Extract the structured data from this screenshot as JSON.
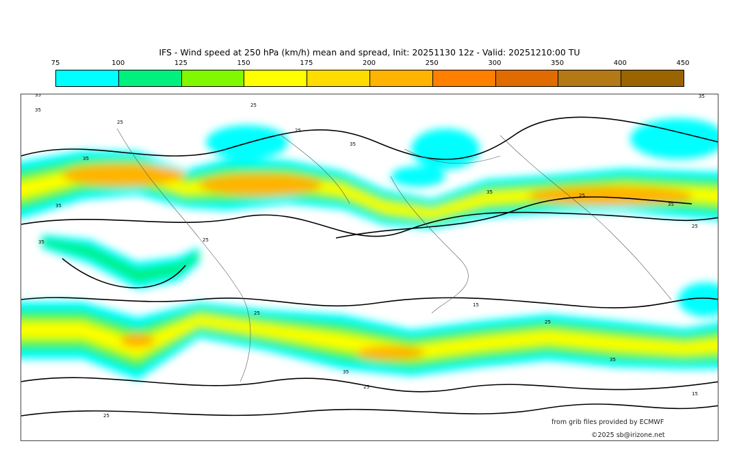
{
  "title": "IFS - Wind speed at 250 hPa (km/h) mean and spread, Init: 20251130 12z - Valid: 20251210:00 TU",
  "colorbar": {
    "ticks": [
      "75",
      "100",
      "125",
      "150",
      "175",
      "200",
      "250",
      "300",
      "350",
      "400",
      "450"
    ],
    "colors": [
      "#00ffff",
      "#00f080",
      "#80f800",
      "#ffff00",
      "#ffdc00",
      "#ffb400",
      "#ff8000",
      "#e06c00",
      "#b47814",
      "#9a6400"
    ]
  },
  "contour_labels": [
    "35",
    "25",
    "15"
  ],
  "credits": {
    "source": "from grib files provided by ECMWF",
    "copyright": "©2025 sb@irizone.net"
  }
}
